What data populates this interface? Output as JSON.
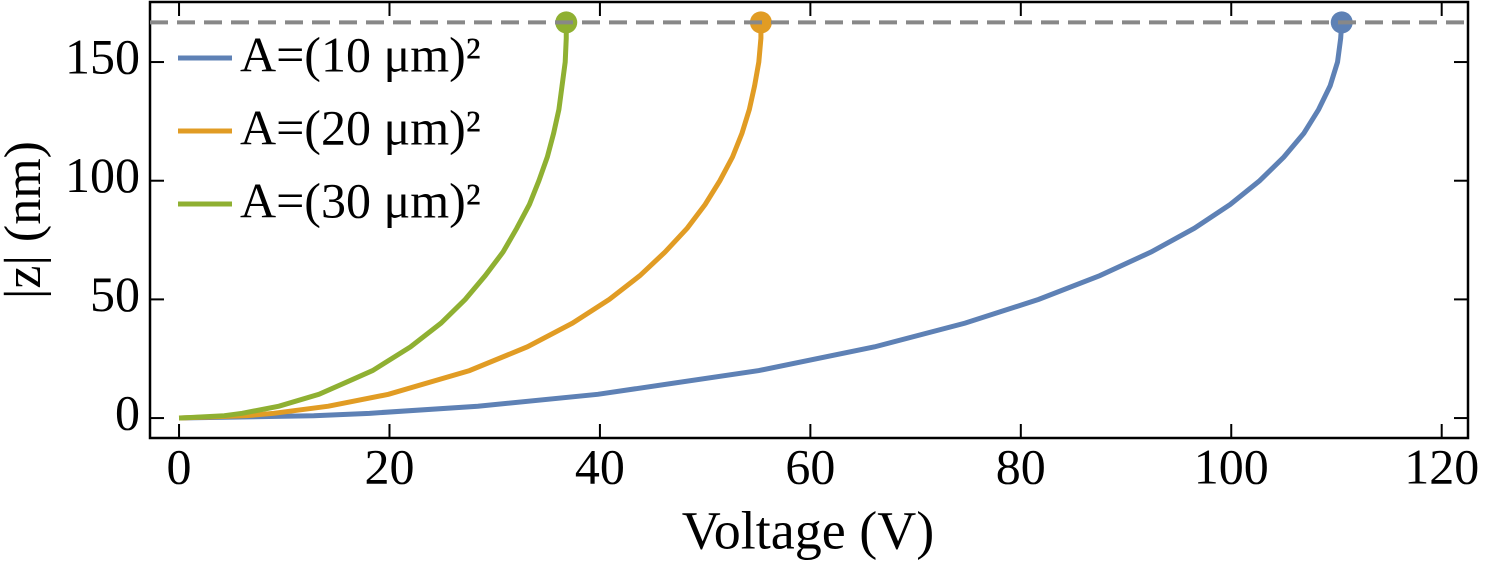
{
  "chart_data": {
    "type": "line",
    "xlabel": "Voltage (V)",
    "ylabel": "|z| (nm)",
    "xlim": [
      -2.76,
      122.5
    ],
    "ylim": [
      -8.4,
      175.3
    ],
    "xticks": [
      0,
      20,
      40,
      60,
      80,
      100,
      120
    ],
    "yticks": [
      0,
      50,
      100,
      150
    ],
    "reference_line": {
      "y": 166.7,
      "color": "#888888"
    },
    "legend": "upper left",
    "series": [
      {
        "name": "A=(10 μm)²",
        "color": "#5e81b5",
        "x": [
          0,
          12.8,
          18.1,
          28.4,
          39.8,
          55.1,
          66.1,
          74.7,
          81.7,
          87.5,
          92.4,
          96.5,
          99.9,
          102.7,
          105.0,
          106.9,
          108.3,
          109.4,
          110.1,
          110.4,
          110.5
        ],
        "values": [
          0,
          1,
          2,
          5,
          10,
          20,
          30,
          40,
          50,
          60,
          70,
          80,
          90,
          100,
          110,
          120,
          130,
          140,
          150,
          160,
          166.7
        ]
      },
      {
        "name": "A=(20 μm)²",
        "color": "#e19c24",
        "x": [
          0,
          6.4,
          9.0,
          14.2,
          19.9,
          27.6,
          33.1,
          37.4,
          40.9,
          43.8,
          46.2,
          48.3,
          50.0,
          51.4,
          52.6,
          53.5,
          54.2,
          54.7,
          55.1,
          55.3,
          55.3
        ],
        "values": [
          0,
          1,
          2,
          5,
          10,
          20,
          30,
          40,
          50,
          60,
          70,
          80,
          90,
          100,
          110,
          120,
          130,
          140,
          150,
          160,
          166.7
        ]
      },
      {
        "name": "A=(30 μm)²",
        "color": "#8fb032",
        "x": [
          0,
          4.3,
          6.0,
          9.5,
          13.3,
          18.4,
          22.0,
          24.9,
          27.2,
          29.1,
          30.8,
          32.1,
          33.3,
          34.2,
          35.0,
          35.6,
          36.1,
          36.4,
          36.7,
          36.8,
          36.8
        ],
        "values": [
          0,
          1,
          2,
          5,
          10,
          20,
          30,
          40,
          50,
          60,
          70,
          80,
          90,
          100,
          110,
          120,
          130,
          140,
          150,
          160,
          166.7
        ]
      }
    ]
  }
}
